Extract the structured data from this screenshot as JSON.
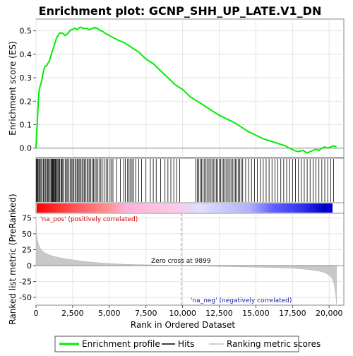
{
  "chart_data": {
    "type": "line",
    "title": "Enrichment plot: GCNP_SHH_UP_LATE.V1_DN",
    "top_panel": {
      "ylabel": "Enrichment score (ES)",
      "ylim": [
        -0.04,
        0.55
      ],
      "yticks": [
        0.0,
        0.1,
        0.2,
        0.3,
        0.4,
        0.5
      ],
      "ytick_labels": [
        "0.0",
        "0.1",
        "0.2",
        "0.3",
        "0.4",
        "0.5"
      ],
      "series_name": "Enrichment profile",
      "x": [
        0,
        40,
        80,
        120,
        160,
        200,
        260,
        320,
        400,
        480,
        560,
        640,
        720,
        800,
        900,
        1000,
        1100,
        1200,
        1300,
        1400,
        1500,
        1600,
        1700,
        1800,
        1900,
        2000,
        2100,
        2200,
        2300,
        2400,
        2500,
        2600,
        2700,
        2800,
        2900,
        3000,
        3100,
        3200,
        3300,
        3400,
        3500,
        3600,
        3700,
        3800,
        3900,
        4000,
        4100,
        4200,
        4300,
        4400,
        4500,
        4700,
        5000,
        5300,
        5600,
        6000,
        6500,
        7000,
        7500,
        8000,
        8500,
        9000,
        9500,
        10000,
        10500,
        11000,
        11500,
        12000,
        12500,
        13000,
        13500,
        14000,
        14500,
        15000,
        15500,
        16000,
        16500,
        17000,
        17300,
        17600,
        17900,
        18200,
        18500,
        18700,
        18900,
        19100,
        19300,
        19500,
        19700,
        19900,
        20100,
        20300,
        20500
      ],
      "y": [
        0.0,
        0.05,
        0.1,
        0.15,
        0.2,
        0.24,
        0.26,
        0.27,
        0.29,
        0.32,
        0.34,
        0.35,
        0.35,
        0.36,
        0.37,
        0.39,
        0.41,
        0.43,
        0.45,
        0.47,
        0.48,
        0.49,
        0.49,
        0.49,
        0.485,
        0.48,
        0.485,
        0.49,
        0.5,
        0.505,
        0.505,
        0.51,
        0.51,
        0.505,
        0.51,
        0.515,
        0.515,
        0.51,
        0.51,
        0.51,
        0.51,
        0.505,
        0.505,
        0.51,
        0.51,
        0.515,
        0.51,
        0.51,
        0.505,
        0.5,
        0.5,
        0.49,
        0.48,
        0.47,
        0.46,
        0.45,
        0.43,
        0.41,
        0.38,
        0.36,
        0.33,
        0.3,
        0.27,
        0.25,
        0.22,
        0.2,
        0.18,
        0.16,
        0.14,
        0.125,
        0.11,
        0.09,
        0.07,
        0.055,
        0.04,
        0.03,
        0.02,
        0.01,
        0.0,
        -0.01,
        -0.015,
        -0.01,
        -0.02,
        -0.015,
        -0.01,
        -0.005,
        -0.01,
        0.0,
        0.005,
        0.0,
        0.005,
        0.01,
        0.005
      ]
    },
    "hits": [
      20,
      60,
      110,
      150,
      210,
      280,
      340,
      420,
      500,
      560,
      640,
      720,
      790,
      850,
      930,
      1010,
      1050,
      1110,
      1150,
      1190,
      1240,
      1290,
      1330,
      1380,
      1440,
      1500,
      1560,
      1620,
      1700,
      1760,
      1820,
      1900,
      2000,
      2080,
      2160,
      2250,
      2330,
      2420,
      2500,
      2580,
      2660,
      2740,
      2820,
      2900,
      2980,
      3060,
      3140,
      3220,
      3300,
      3390,
      3480,
      3560,
      3650,
      3740,
      3830,
      3920,
      4010,
      4100,
      4200,
      4300,
      4420,
      4520,
      4640,
      4780,
      4900,
      5050,
      5150,
      5250,
      5500,
      5750,
      6000,
      6100,
      6250,
      6350,
      6450,
      6550,
      6650,
      6800,
      7000,
      7200,
      7500,
      7800,
      8000,
      8200,
      8500,
      8800,
      9000,
      9200,
      9400,
      9600,
      9800,
      10900,
      11000,
      11100,
      11200,
      11300,
      11400,
      11500,
      11600,
      11700,
      11800,
      11900,
      12000,
      12100,
      12200,
      12300,
      12400,
      12500,
      12600,
      12700,
      12800,
      12900,
      13000,
      13100,
      13200,
      13300,
      13400,
      13500,
      13600,
      13700,
      13800,
      13900,
      14000,
      14100,
      14300,
      14500,
      14700,
      14900,
      15100,
      15300,
      15500,
      15700,
      15900,
      16100,
      16300,
      16500,
      16700,
      16900,
      17100,
      17300,
      17500,
      17700,
      17900,
      18100,
      18300,
      18500,
      18700,
      18900,
      19100,
      19300,
      19500,
      19700,
      19900,
      20100,
      20300
    ],
    "heatmap": {
      "pos_label": "'na_pos' (positively correlated)",
      "neg_label": "'na_neg' (negatively correlated)"
    },
    "bottom_panel": {
      "ylabel": "Ranked list metric (PreRanked)",
      "ylim": [
        -62,
        82
      ],
      "yticks": [
        75,
        50,
        25,
        0,
        -25,
        -50
      ],
      "ytick_labels": [
        "75",
        "50",
        "25",
        "0",
        "-25",
        "-50"
      ],
      "x": [
        0,
        25,
        50,
        100,
        150,
        200,
        300,
        400,
        600,
        800,
        1000,
        1300,
        1700,
        2200,
        2800,
        3500,
        4500,
        6000,
        8000,
        9899,
        12000,
        14000,
        16000,
        17500,
        18500,
        19200,
        19700,
        20000,
        20200,
        20350,
        20450,
        20500
      ],
      "y": [
        75,
        55,
        48,
        40,
        35,
        31,
        27,
        24,
        20,
        18,
        16,
        14,
        12,
        10,
        8,
        6,
        4,
        2,
        1,
        0,
        -1,
        -2,
        -3,
        -4,
        -6,
        -8,
        -11,
        -15,
        -20,
        -30,
        -45,
        -60
      ],
      "zero_cross_label": "Zero cross at 9899",
      "zero_cross": 9899
    },
    "xlabel": "Rank in Ordered Dataset",
    "xlim": [
      0,
      21000
    ],
    "xticks": [
      0,
      2500,
      5000,
      7500,
      10000,
      12500,
      15000,
      17500,
      20000
    ],
    "xtick_labels": [
      "0",
      "2,500",
      "5,000",
      "7,500",
      "10,000",
      "12,500",
      "15,000",
      "17,500",
      "20,000"
    ],
    "legend": {
      "items": [
        {
          "label": "Enrichment profile",
          "color": "#00ee00"
        },
        {
          "label": "Hits",
          "color": "#000000"
        },
        {
          "label": "Ranking metric scores",
          "color": "#c0c0c0"
        }
      ],
      "placement": "bottom"
    }
  }
}
